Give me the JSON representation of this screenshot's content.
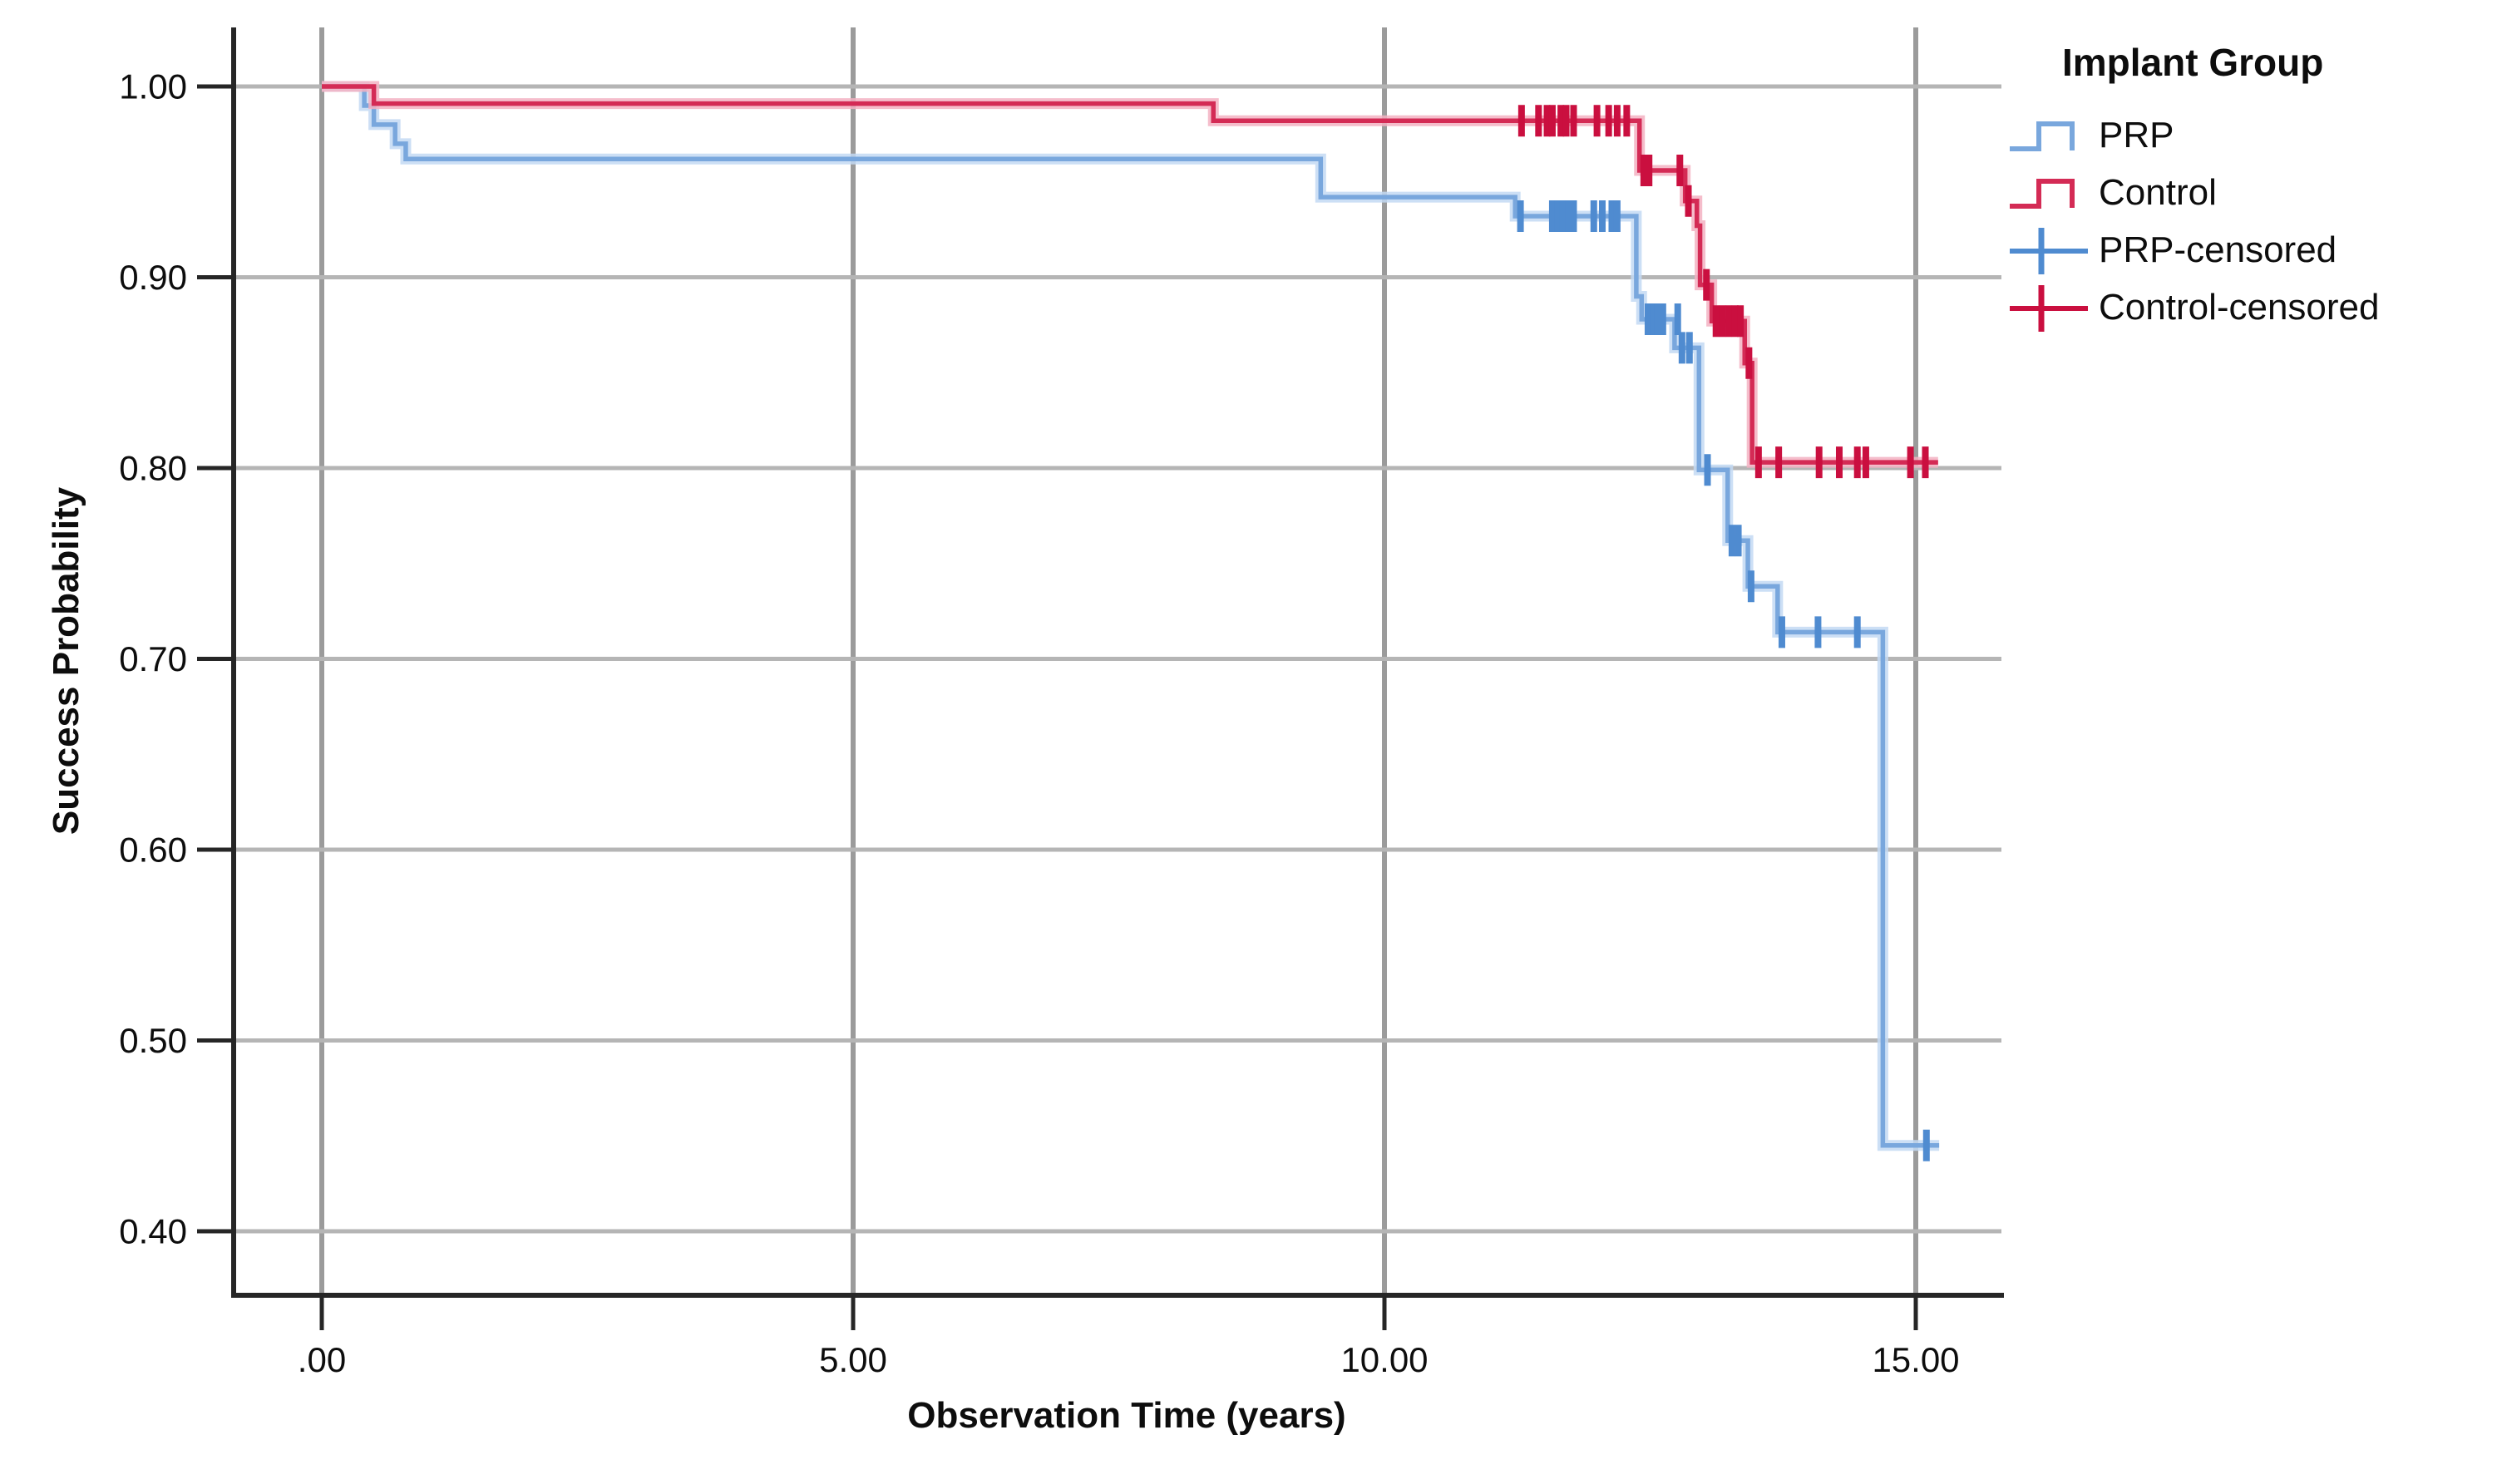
{
  "chart_data": {
    "type": "line",
    "subtype": "kaplan-meier-step-plot",
    "title": "",
    "xlabel": "Observation Time (years)",
    "ylabel": "Success Probability",
    "xlim": [
      -0.83,
      15.83
    ],
    "ylim": [
      0.366,
      1.031
    ],
    "grid": true,
    "x_ticks": [
      {
        "t": 0,
        "label": ".00"
      },
      {
        "t": 5,
        "label": "5.00"
      },
      {
        "t": 10,
        "label": "10.00"
      },
      {
        "t": 15,
        "label": "15.00"
      }
    ],
    "y_ticks": [
      {
        "v": 1.0,
        "label": "1.00"
      },
      {
        "v": 0.9,
        "label": "0.90"
      },
      {
        "v": 0.8,
        "label": "0.80"
      },
      {
        "v": 0.7,
        "label": "0.70"
      },
      {
        "v": 0.6,
        "label": "0.60"
      },
      {
        "v": 0.5,
        "label": "0.50"
      },
      {
        "v": 0.4,
        "label": "0.40"
      }
    ],
    "legend": {
      "title": "Implant Group",
      "position": "top-right",
      "entries": [
        {
          "label": "PRP",
          "glyph": "step",
          "color": "#79a7dd"
        },
        {
          "label": "Control",
          "glyph": "step",
          "color": "#d42b55"
        },
        {
          "label": "PRP-censored",
          "glyph": "plus",
          "color": "#4f8bd0"
        },
        {
          "label": "Control-censored",
          "glyph": "plus",
          "color": "#ca0f3f"
        }
      ]
    },
    "colors": {
      "prp_line": "#79a7dd",
      "prp_halo": "#c3d9f3",
      "prp_censor": "#4f8bd0",
      "control_line": "#d42b55",
      "control_halo": "#f3b1c2",
      "control_censor": "#ca0f3f",
      "grid_h": "#b5b5b5",
      "grid_v": "#9b9b9b",
      "spine": "#262626",
      "text": "#0d0d0d"
    },
    "series": [
      {
        "name": "PRP",
        "start": [
          0,
          1.0
        ],
        "steps": [
          [
            0.4,
            0.99
          ],
          [
            0.49,
            0.98
          ],
          [
            0.69,
            0.97
          ],
          [
            0.79,
            0.962
          ],
          [
            9.4,
            0.942
          ],
          [
            11.23,
            0.932
          ],
          [
            12.37,
            0.89
          ],
          [
            12.42,
            0.878
          ],
          [
            12.73,
            0.863
          ],
          [
            12.96,
            0.799
          ],
          [
            13.23,
            0.762
          ],
          [
            13.42,
            0.738
          ],
          [
            13.7,
            0.714
          ],
          [
            14.69,
            0.445
          ]
        ],
        "end": 15.22,
        "censors": [
          [
            11.28,
            0.932
          ],
          [
            11.58,
            0.932
          ],
          [
            11.63,
            0.932
          ],
          [
            11.68,
            0.932
          ],
          [
            11.73,
            0.932
          ],
          [
            11.78,
            0.932
          ],
          [
            11.97,
            0.932
          ],
          [
            12.05,
            0.932
          ],
          [
            12.14,
            0.932
          ],
          [
            12.19,
            0.932
          ],
          [
            12.48,
            0.878
          ],
          [
            12.53,
            0.878
          ],
          [
            12.57,
            0.878
          ],
          [
            12.62,
            0.878
          ],
          [
            12.76,
            0.878
          ],
          [
            12.8,
            0.863
          ],
          [
            12.87,
            0.863
          ],
          [
            13.04,
            0.799
          ],
          [
            13.27,
            0.762
          ],
          [
            13.33,
            0.762
          ],
          [
            13.45,
            0.738
          ],
          [
            13.74,
            0.714
          ],
          [
            14.08,
            0.714
          ],
          [
            14.45,
            0.714
          ],
          [
            15.1,
            0.445
          ]
        ]
      },
      {
        "name": "Control",
        "start": [
          0,
          1.0
        ],
        "steps": [
          [
            0.49,
            0.991
          ],
          [
            8.39,
            0.982
          ],
          [
            12.4,
            0.956
          ],
          [
            12.83,
            0.94
          ],
          [
            12.94,
            0.927
          ],
          [
            12.97,
            0.896
          ],
          [
            13.08,
            0.877
          ],
          [
            13.39,
            0.855
          ],
          [
            13.46,
            0.803
          ]
        ],
        "end": 15.21,
        "censors": [
          [
            11.29,
            0.982
          ],
          [
            11.45,
            0.982
          ],
          [
            11.53,
            0.982
          ],
          [
            11.58,
            0.982
          ],
          [
            11.66,
            0.982
          ],
          [
            11.71,
            0.982
          ],
          [
            11.78,
            0.982
          ],
          [
            12.0,
            0.982
          ],
          [
            12.11,
            0.982
          ],
          [
            12.19,
            0.982
          ],
          [
            12.28,
            0.982
          ],
          [
            12.44,
            0.956
          ],
          [
            12.49,
            0.956
          ],
          [
            12.78,
            0.956
          ],
          [
            12.86,
            0.94
          ],
          [
            13.03,
            0.896
          ],
          [
            13.12,
            0.877
          ],
          [
            13.18,
            0.877
          ],
          [
            13.24,
            0.877
          ],
          [
            13.3,
            0.877
          ],
          [
            13.35,
            0.877
          ],
          [
            13.43,
            0.855
          ],
          [
            13.52,
            0.803
          ],
          [
            13.71,
            0.803
          ],
          [
            14.09,
            0.803
          ],
          [
            14.28,
            0.803
          ],
          [
            14.45,
            0.803
          ],
          [
            14.53,
            0.803
          ],
          [
            14.95,
            0.803
          ],
          [
            15.09,
            0.803
          ]
        ]
      }
    ]
  }
}
